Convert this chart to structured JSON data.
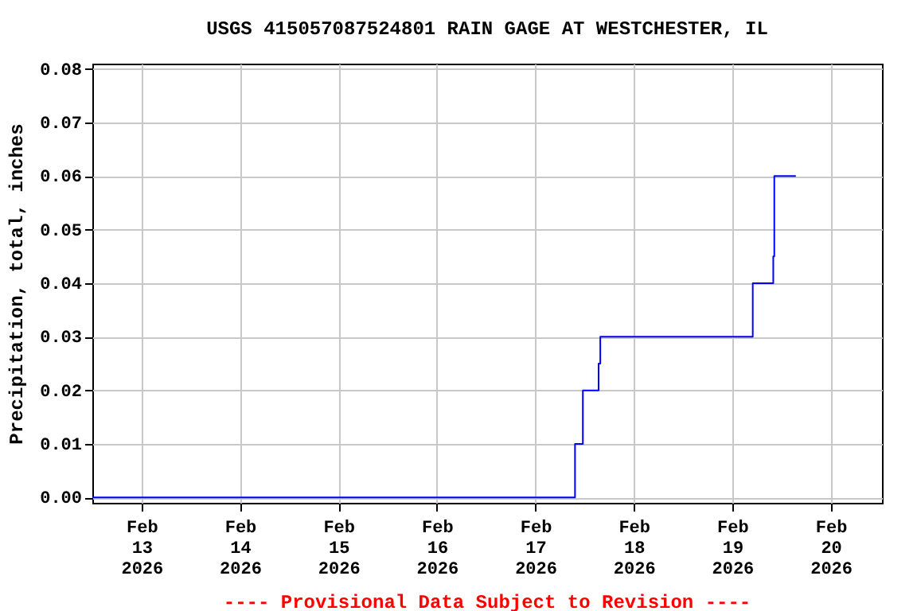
{
  "chart_data": {
    "type": "step",
    "title": "USGS 415057087524801 RAIN GAGE AT WESTCHESTER, IL",
    "ylabel": "Precipitation, total, inches",
    "annotations": [
      "---- Provisional Data Subject to Revision ----"
    ],
    "x": [
      "2026-02-12T12:00",
      "2026-02-17T09:40",
      "2026-02-17T11:35",
      "2026-02-17T15:25",
      "2026-02-17T15:50",
      "2026-02-19T05:00",
      "2026-02-19T10:00",
      "2026-02-19T10:15",
      "2026-02-19T15:30"
    ],
    "series": [
      {
        "color": "#0000ff",
        "values": [
          0,
          0.01,
          0.02,
          0.025,
          0.03,
          0.04,
          0.045,
          0.06,
          0.06
        ]
      }
    ],
    "xlim": [
      "2026-02-12T12:00",
      "2026-02-20T12:30"
    ],
    "xticks": [
      {
        "value": "2026-02-13",
        "label": "Feb\n13\n2026"
      },
      {
        "value": "2026-02-14",
        "label": "Feb\n14\n2026"
      },
      {
        "value": "2026-02-15",
        "label": "Feb\n15\n2026"
      },
      {
        "value": "2026-02-16",
        "label": "Feb\n16\n2026"
      },
      {
        "value": "2026-02-17",
        "label": "Feb\n17\n2026"
      },
      {
        "value": "2026-02-18",
        "label": "Feb\n18\n2026"
      },
      {
        "value": "2026-02-19",
        "label": "Feb\n19\n2026"
      },
      {
        "value": "2026-02-20",
        "label": "Feb\n20\n2026"
      }
    ],
    "ylim": [
      -0.001,
      0.081
    ],
    "yticks": [
      {
        "value": 0,
        "label": "0.00"
      },
      {
        "value": 0.01,
        "label": "0.01"
      },
      {
        "value": 0.02,
        "label": "0.02"
      },
      {
        "value": 0.03,
        "label": "0.03"
      },
      {
        "value": 0.04,
        "label": "0.04"
      },
      {
        "value": 0.05,
        "label": "0.05"
      },
      {
        "value": 0.06,
        "label": "0.06"
      },
      {
        "value": 0.07,
        "label": "0.07"
      },
      {
        "value": 0.08,
        "label": "0.08"
      }
    ],
    "grid": true,
    "marker": "none",
    "line_style": "solid"
  }
}
